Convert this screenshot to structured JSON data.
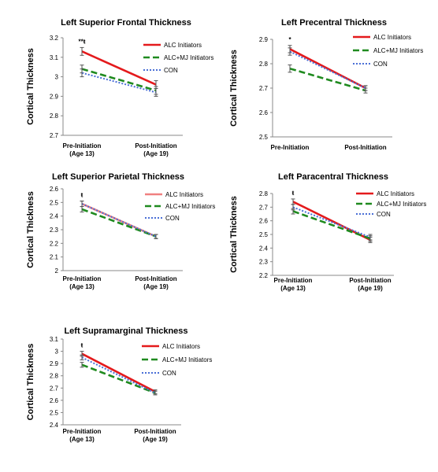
{
  "chart_data": [
    {
      "type": "line",
      "title": "Left Superior Frontal Thickness",
      "ylabel": "Cortical Thickness",
      "xlabel": "",
      "categories": [
        "Pre-Initiation\n(Age 13)",
        "Post-Initiation\n(Age 19)"
      ],
      "ylim": [
        2.7,
        3.2
      ],
      "yticks": [
        "2.7",
        "2.8",
        "2.9",
        "3",
        "3.1",
        "3.2"
      ],
      "legend": "top-right",
      "annotation": "**ŧ",
      "series": [
        {
          "name": "ALC Initiators",
          "values": [
            3.13,
            2.96
          ],
          "errors": [
            0.02,
            0.02
          ],
          "color": "#e41a1c",
          "dash": "solid"
        },
        {
          "name": "ALC+MJ Initiators",
          "values": [
            3.04,
            2.93
          ],
          "errors": [
            0.02,
            0.02
          ],
          "color": "#1f8a1f",
          "dash": "dashed"
        },
        {
          "name": "CON",
          "values": [
            3.02,
            2.92
          ],
          "errors": [
            0.02,
            0.02
          ],
          "color": "#4a6fd6",
          "dash": "dotted"
        }
      ]
    },
    {
      "type": "line",
      "title": "Left Precentral Thickness",
      "ylabel": "Cortical Thickness",
      "xlabel": "",
      "categories": [
        "Pre-Initiation",
        "Post-Initiation"
      ],
      "ylim": [
        2.5,
        2.9
      ],
      "yticks": [
        "2.5",
        "2.6",
        "2.7",
        "2.8",
        "2.9"
      ],
      "legend": "top-right",
      "annotation": "*",
      "series": [
        {
          "name": "ALC Initiators",
          "values": [
            2.86,
            2.7
          ],
          "errors": [
            0.015,
            0.01
          ],
          "color": "#e41a1c",
          "dash": "solid"
        },
        {
          "name": "ALC+MJ Initiators",
          "values": [
            2.78,
            2.69
          ],
          "errors": [
            0.015,
            0.01
          ],
          "color": "#1f8a1f",
          "dash": "dashed"
        },
        {
          "name": "CON",
          "values": [
            2.85,
            2.7
          ],
          "errors": [
            0.015,
            0.01
          ],
          "color": "#4a6fd6",
          "dash": "dotted"
        }
      ]
    },
    {
      "type": "line",
      "title": "Left Superior Parietal Thickness",
      "ylabel": "Cortical Thickness",
      "xlabel": "",
      "categories": [
        "Pre-Initiation\n(Age 13)",
        "Post-Initiation\n(Age 19)"
      ],
      "ylim": [
        2.0,
        2.6
      ],
      "yticks": [
        "2",
        "2.1",
        "2.2",
        "2.3",
        "2.4",
        "2.5",
        "2.6"
      ],
      "legend": "top-right",
      "annotation": "ŧ",
      "series": [
        {
          "name": "ALC Initiators",
          "values": [
            2.49,
            2.25
          ],
          "errors": [
            0.02,
            0.015
          ],
          "color": "#f08080",
          "dash": "solid"
        },
        {
          "name": "ALC+MJ Initiators",
          "values": [
            2.45,
            2.25
          ],
          "errors": [
            0.02,
            0.015
          ],
          "color": "#1f8a1f",
          "dash": "dashed"
        },
        {
          "name": "CON",
          "values": [
            2.49,
            2.25
          ],
          "errors": [
            0.02,
            0.015
          ],
          "color": "#4a6fd6",
          "dash": "dotted"
        }
      ]
    },
    {
      "type": "line",
      "title": "Left Paracentral Thickness",
      "ylabel": "Cortical Thickness",
      "xlabel": "",
      "categories": [
        "Pre-Initiation\n(Age 13)",
        "Post-Initiation\n(Age 19)"
      ],
      "ylim": [
        2.2,
        2.8
      ],
      "yticks": [
        "2.2",
        "2.3",
        "2.4",
        "2.5",
        "2.6",
        "2.7",
        "2.8"
      ],
      "legend": "top-right",
      "annotation": "ŧ",
      "series": [
        {
          "name": "ALC Initiators",
          "values": [
            2.74,
            2.46
          ],
          "errors": [
            0.02,
            0.02
          ],
          "color": "#e41a1c",
          "dash": "solid"
        },
        {
          "name": "ALC+MJ Initiators",
          "values": [
            2.67,
            2.47
          ],
          "errors": [
            0.02,
            0.02
          ],
          "color": "#1f8a1f",
          "dash": "dashed"
        },
        {
          "name": "CON",
          "values": [
            2.7,
            2.48
          ],
          "errors": [
            0.02,
            0.02
          ],
          "color": "#4a6fd6",
          "dash": "dotted"
        }
      ]
    },
    {
      "type": "line",
      "title": "Left Supramarginal Thickness",
      "ylabel": "Cortical Thickness",
      "xlabel": "",
      "categories": [
        "Pre-Initiation\n(Age 13)",
        "Post-Initiation\n(Age 19)"
      ],
      "ylim": [
        2.4,
        3.1
      ],
      "yticks": [
        "2.4",
        "2.5",
        "2.6",
        "2.7",
        "2.8",
        "2.9",
        "3",
        "3.1"
      ],
      "legend": "top-right",
      "annotation": "ŧ",
      "series": [
        {
          "name": "ALC Initiators",
          "values": [
            2.98,
            2.67
          ],
          "errors": [
            0.02,
            0.015
          ],
          "color": "#e41a1c",
          "dash": "solid"
        },
        {
          "name": "ALC+MJ Initiators",
          "values": [
            2.89,
            2.66
          ],
          "errors": [
            0.02,
            0.015
          ],
          "color": "#1f8a1f",
          "dash": "dashed"
        },
        {
          "name": "CON",
          "values": [
            2.95,
            2.66
          ],
          "errors": [
            0.02,
            0.015
          ],
          "color": "#4a6fd6",
          "dash": "dotted"
        }
      ]
    }
  ]
}
